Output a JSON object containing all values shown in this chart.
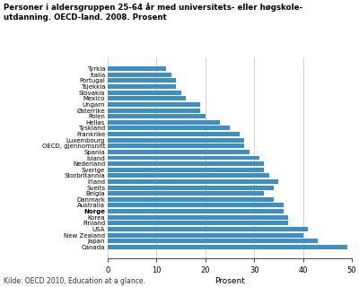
{
  "title_line1": "Personer i aldersgruppen 25-64 år med universitets- eller høgskole-",
  "title_line2": "utdanning. OECD-land. 2008. Prosent",
  "xlabel": "Prosent",
  "source": "Kilde: OECD 2010, Education at a glance.",
  "bar_color": "#3d8fc4",
  "categories": [
    "Canada",
    "Japan",
    "New Zealand",
    "USA",
    "Finland",
    "Korea",
    "Norge",
    "Australia",
    "Danmark",
    "Belgia",
    "Sveits",
    "Irland",
    "Storbritannia",
    "Sverige",
    "Nederland",
    "Island",
    "Spania",
    "OECD, gjennomsnitt",
    "Luxembourg",
    "Frankrike",
    "Tyskland",
    "Hellas",
    "Polen",
    "Østerrike",
    "Ungarn",
    "Mexico",
    "Slovakia",
    "Tsjekkia",
    "Portugal",
    "Italia",
    "Tyrkia"
  ],
  "values": [
    49,
    43,
    40,
    41,
    37,
    37,
    36,
    36,
    34,
    32,
    34,
    35,
    33,
    32,
    32,
    31,
    29,
    28,
    28,
    27,
    25,
    23,
    20,
    19,
    19,
    16,
    15,
    14,
    14,
    13,
    12
  ],
  "bold_labels": [
    "Norge"
  ],
  "xlim": [
    0,
    50
  ],
  "xticks": [
    0,
    10,
    20,
    30,
    40,
    50
  ],
  "background_color": "#ffffff",
  "grid_color": "#c0c0c0"
}
